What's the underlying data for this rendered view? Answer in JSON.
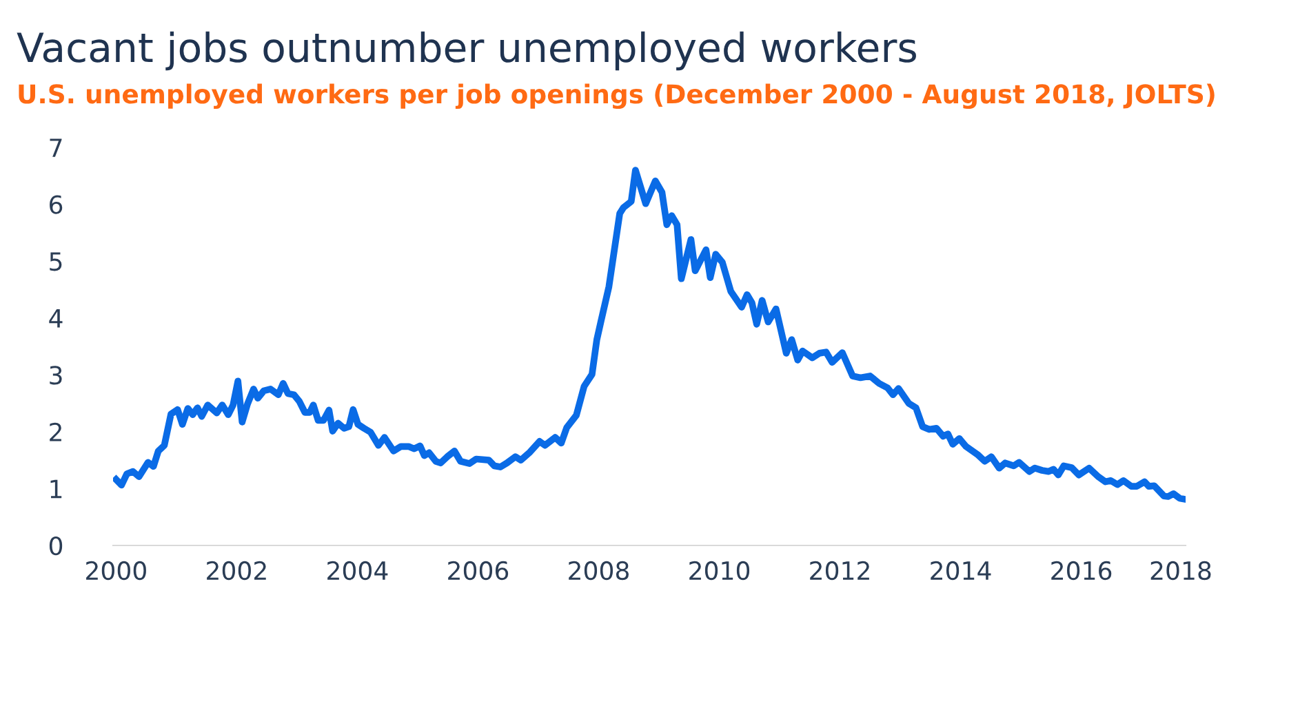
{
  "chart_data": {
    "type": "line",
    "title": "Vacant jobs outnumber unemployed workers",
    "subtitle": "U.S. unemployed workers per job openings (December 2000 - August 2018, JOLTS)",
    "x": [
      2000.0,
      2000.09,
      2000.18,
      2000.28,
      2000.38,
      2000.53,
      2000.62,
      2000.7,
      2000.8,
      2000.91,
      2001.02,
      2001.1,
      2001.19,
      2001.27,
      2001.35,
      2001.42,
      2001.52,
      2001.67,
      2001.76,
      2001.86,
      2001.94,
      2002.02,
      2002.09,
      2002.18,
      2002.28,
      2002.35,
      2002.45,
      2002.56,
      2002.69,
      2002.77,
      2002.85,
      2002.95,
      2003.04,
      2003.13,
      2003.21,
      2003.27,
      2003.35,
      2003.44,
      2003.53,
      2003.59,
      2003.68,
      2003.78,
      2003.86,
      2003.93,
      2004.01,
      2004.11,
      2004.22,
      2004.35,
      2004.45,
      2004.6,
      2004.72,
      2004.85,
      2004.94,
      2005.04,
      2005.11,
      2005.19,
      2005.3,
      2005.38,
      2005.49,
      2005.61,
      2005.71,
      2005.86,
      2005.97,
      2006.18,
      2006.27,
      2006.37,
      2006.48,
      2006.62,
      2006.71,
      2006.86,
      2007.02,
      2007.11,
      2007.28,
      2007.38,
      2007.47,
      2007.63,
      2007.76,
      2007.89,
      2007.97,
      2008.04,
      2008.17,
      2008.35,
      2008.41,
      2008.54,
      2008.61,
      2008.78,
      2008.94,
      2009.05,
      2009.13,
      2009.21,
      2009.3,
      2009.37,
      2009.53,
      2009.6,
      2009.78,
      2009.85,
      2009.94,
      2010.05,
      2010.19,
      2010.37,
      2010.46,
      2010.54,
      2010.62,
      2010.71,
      2010.81,
      2010.94,
      2011.11,
      2011.2,
      2011.3,
      2011.38,
      2011.54,
      2011.66,
      2011.77,
      2011.87,
      2012.04,
      2012.21,
      2012.34,
      2012.5,
      2012.65,
      2012.79,
      2012.88,
      2012.97,
      2013.14,
      2013.26,
      2013.37,
      2013.48,
      2013.6,
      2013.71,
      2013.79,
      2013.87,
      2013.98,
      2014.09,
      2014.28,
      2014.4,
      2014.51,
      2014.64,
      2014.74,
      2014.88,
      2014.97,
      2015.14,
      2015.23,
      2015.35,
      2015.46,
      2015.54,
      2015.62,
      2015.71,
      2015.84,
      2015.96,
      2016.13,
      2016.28,
      2016.4,
      2016.49,
      2016.6,
      2016.7,
      2016.83,
      2016.92,
      2017.05,
      2017.12,
      2017.21,
      2017.37,
      2017.44,
      2017.53,
      2017.63,
      2017.73
    ],
    "series": [
      {
        "color": "#0a6be6",
        "values": [
          1.16,
          1.06,
          1.26,
          1.3,
          1.21,
          1.46,
          1.39,
          1.66,
          1.76,
          2.31,
          2.39,
          2.13,
          2.41,
          2.3,
          2.42,
          2.27,
          2.47,
          2.33,
          2.47,
          2.3,
          2.47,
          2.89,
          2.17,
          2.49,
          2.75,
          2.59,
          2.72,
          2.75,
          2.65,
          2.85,
          2.67,
          2.65,
          2.53,
          2.34,
          2.34,
          2.47,
          2.2,
          2.2,
          2.38,
          2.01,
          2.15,
          2.06,
          2.09,
          2.39,
          2.13,
          2.06,
          1.99,
          1.76,
          1.9,
          1.66,
          1.74,
          1.74,
          1.7,
          1.75,
          1.58,
          1.63,
          1.48,
          1.45,
          1.56,
          1.66,
          1.48,
          1.44,
          1.52,
          1.5,
          1.4,
          1.38,
          1.45,
          1.56,
          1.5,
          1.64,
          1.83,
          1.76,
          1.9,
          1.8,
          2.07,
          2.29,
          2.8,
          3.01,
          3.62,
          3.95,
          4.55,
          5.84,
          5.94,
          6.05,
          6.6,
          6.01,
          6.41,
          6.21,
          5.64,
          5.8,
          5.64,
          4.69,
          5.38,
          4.83,
          5.2,
          4.71,
          5.12,
          4.98,
          4.47,
          4.19,
          4.41,
          4.27,
          3.89,
          4.31,
          3.93,
          4.16,
          3.38,
          3.62,
          3.26,
          3.42,
          3.3,
          3.38,
          3.4,
          3.22,
          3.39,
          2.98,
          2.95,
          2.98,
          2.85,
          2.77,
          2.65,
          2.76,
          2.5,
          2.42,
          2.09,
          2.04,
          2.06,
          1.92,
          1.96,
          1.78,
          1.88,
          1.74,
          1.6,
          1.48,
          1.56,
          1.36,
          1.45,
          1.4,
          1.46,
          1.3,
          1.36,
          1.32,
          1.3,
          1.34,
          1.24,
          1.4,
          1.37,
          1.24,
          1.36,
          1.21,
          1.12,
          1.14,
          1.07,
          1.14,
          1.04,
          1.04,
          1.12,
          1.04,
          1.05,
          0.87,
          0.86,
          0.91,
          0.83,
          0.81
        ]
      }
    ],
    "xlim": [
      1999.95,
      2017.73
    ],
    "xticks": [
      2000,
      2002,
      2004,
      2006,
      2008,
      2010,
      2012,
      2014,
      2016,
      {
        "value": 2017.65,
        "label": "2018"
      }
    ],
    "ylim": [
      0,
      7
    ],
    "yticks": [
      0,
      1,
      2,
      3,
      4,
      5,
      6,
      7
    ],
    "grid": false,
    "marker": "none",
    "line_style": "solid"
  }
}
